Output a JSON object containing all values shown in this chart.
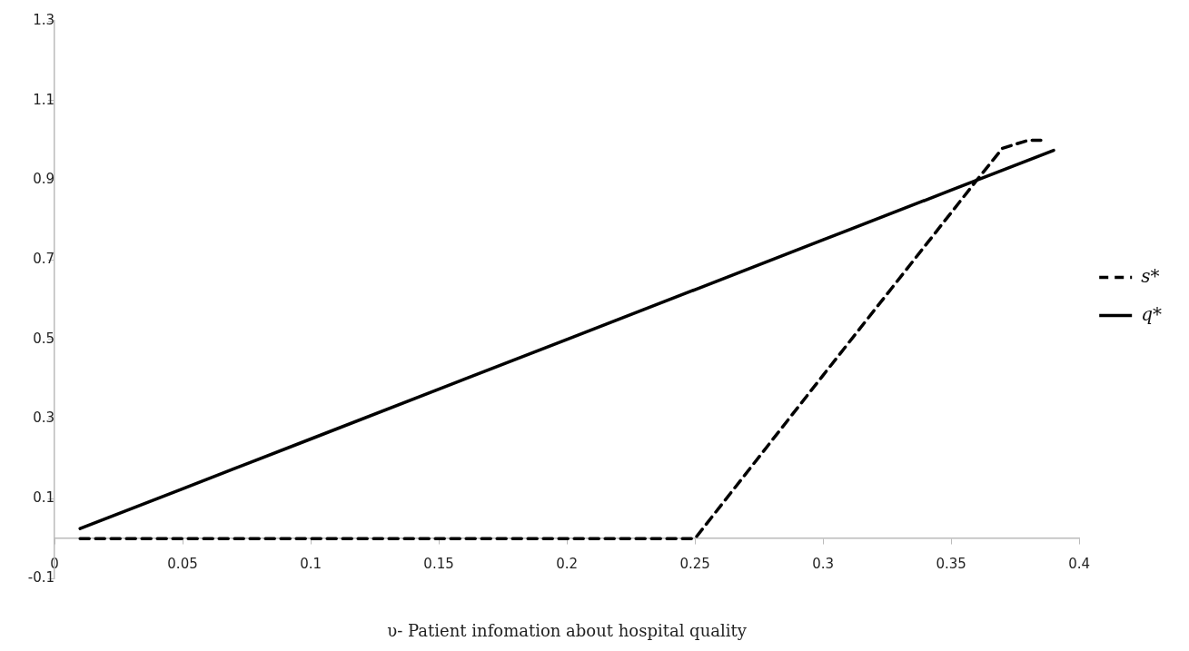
{
  "chart_data": {
    "type": "line",
    "xlabel": "υ- Patient infomation about hospital quality",
    "xlim": [
      0,
      0.4
    ],
    "xticks": [
      0,
      0.05,
      0.1,
      0.15,
      0.2,
      0.25,
      0.3,
      0.35,
      0.4
    ],
    "ylim": [
      -0.1,
      1.3
    ],
    "yticks": [
      -0.1,
      0.1,
      0.3,
      0.5,
      0.7,
      0.9,
      1.1,
      1.3
    ],
    "grid": false,
    "legend": "right",
    "marker": "none",
    "series": [
      {
        "name": "s*",
        "color": "#000000",
        "line_style": "dashed",
        "x": [
          0.01,
          0.05,
          0.1,
          0.15,
          0.2,
          0.25,
          0.3,
          0.36,
          0.37,
          0.38,
          0.385
        ],
        "values": [
          0,
          0,
          0,
          0,
          0,
          0,
          0.41,
          0.9,
          0.98,
          1.0,
          1.0
        ]
      },
      {
        "name": "q*",
        "color": "#000000",
        "line_style": "solid",
        "x": [
          0.01,
          0.05,
          0.1,
          0.15,
          0.2,
          0.25,
          0.3,
          0.35,
          0.39
        ],
        "values": [
          0.025,
          0.125,
          0.25,
          0.375,
          0.5,
          0.625,
          0.75,
          0.875,
          0.975
        ]
      }
    ]
  }
}
